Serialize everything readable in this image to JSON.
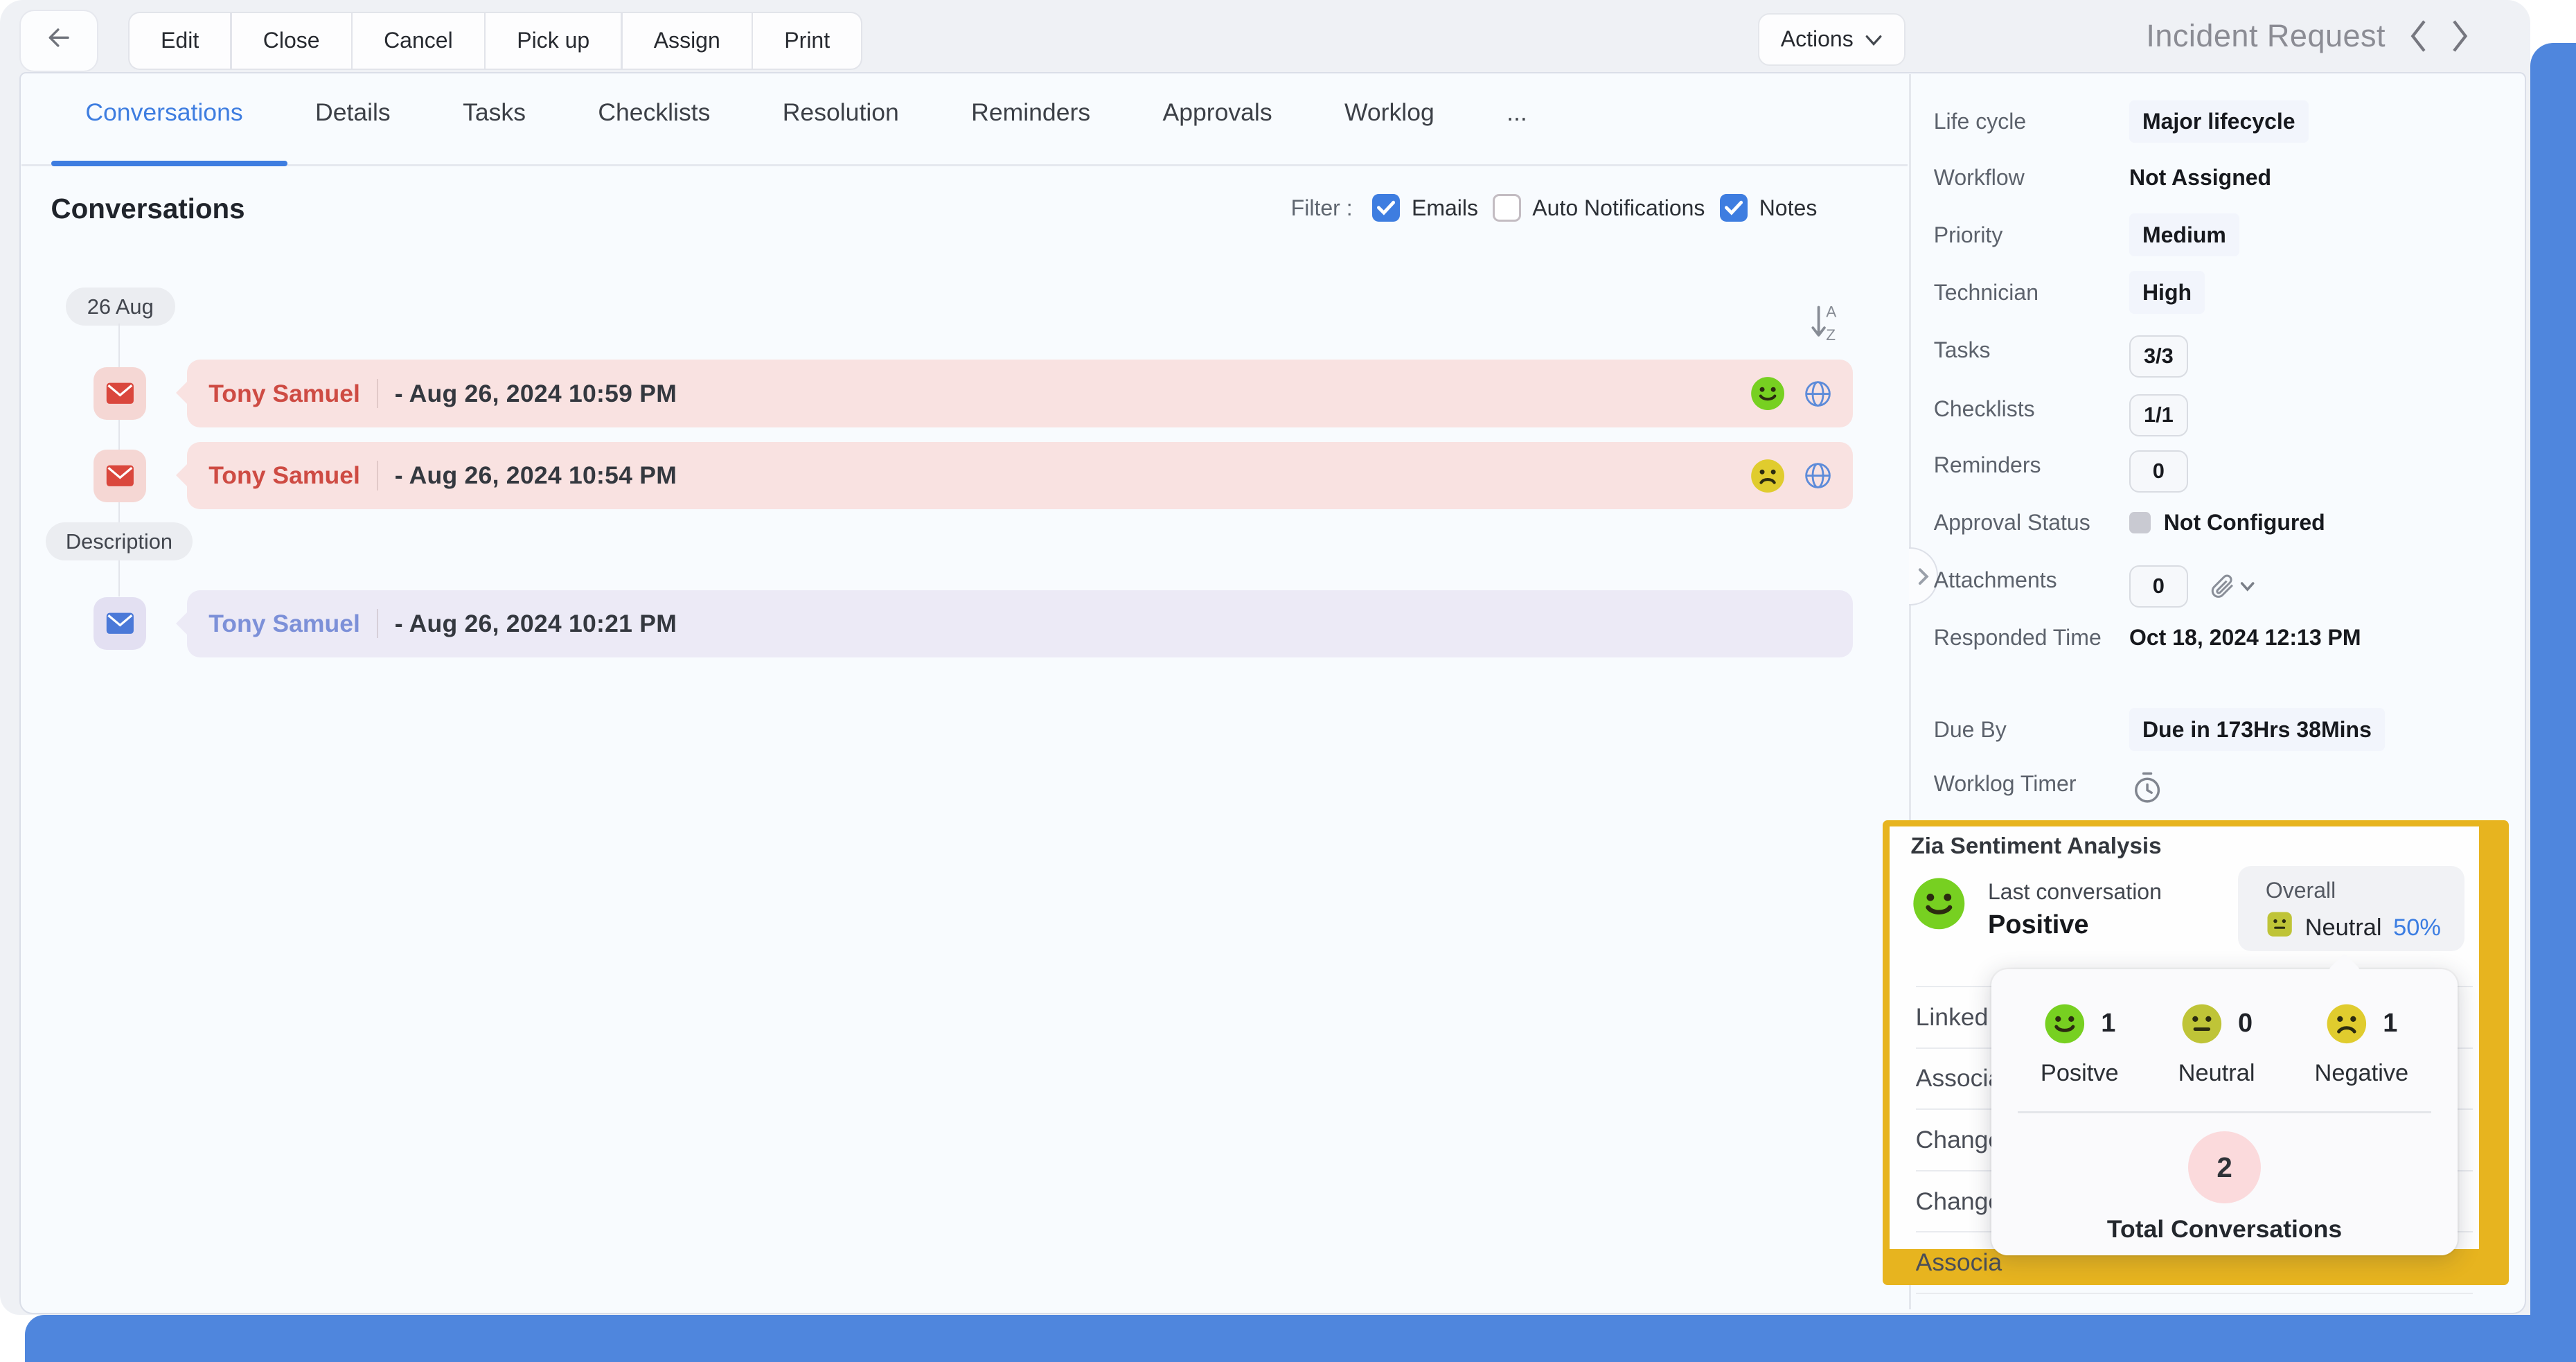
{
  "window": {
    "title": "Incident Request"
  },
  "toolbar": {
    "buttons": [
      "Edit",
      "Close",
      "Cancel",
      "Pick up",
      "Assign",
      "Print"
    ],
    "actions_label": "Actions"
  },
  "tabs": {
    "items": [
      "Conversations",
      "Details",
      "Tasks",
      "Checklists",
      "Resolution",
      "Reminders",
      "Approvals",
      "Worklog",
      "..."
    ],
    "active": "Conversations"
  },
  "conversations": {
    "heading": "Conversations",
    "filter": {
      "label": "Filter :",
      "options": [
        {
          "label": "Emails",
          "checked": true
        },
        {
          "label": "Auto Notifications",
          "checked": false
        },
        {
          "label": "Notes",
          "checked": true
        }
      ]
    },
    "date_chip": "26 Aug",
    "description_chip": "Description",
    "items": [
      {
        "sender": "Tony Samuel",
        "timestamp": "- Aug 26, 2024 10:59 PM",
        "type": "email",
        "theme": "red",
        "sentiment": "positive",
        "has_globe": true
      },
      {
        "sender": "Tony Samuel",
        "timestamp": "- Aug 26, 2024 10:54 PM",
        "type": "email",
        "theme": "red",
        "sentiment": "negative",
        "has_globe": true
      },
      {
        "sender": "Tony Samuel",
        "timestamp": "- Aug 26, 2024 10:21 PM",
        "type": "email",
        "theme": "purple",
        "sentiment": null,
        "has_globe": false
      }
    ]
  },
  "properties": {
    "rows": [
      {
        "label": "Life cycle",
        "value": "Major lifecycle",
        "style": "highlight"
      },
      {
        "label": "Workflow",
        "value": "Not Assigned",
        "style": "plain"
      },
      {
        "label": "Priority",
        "value": "Medium",
        "style": "highlight"
      },
      {
        "label": "Technician",
        "value": "High",
        "style": "highlight"
      },
      {
        "label": "Tasks",
        "value": "3/3",
        "style": "chip"
      },
      {
        "label": "Checklists",
        "value": "1/1",
        "style": "chip"
      },
      {
        "label": "Reminders",
        "value": "0",
        "style": "chip"
      },
      {
        "label": "Approval Status",
        "value": "Not Configured",
        "style": "square"
      },
      {
        "label": "Attachments",
        "value": "0",
        "style": "chip-attach"
      },
      {
        "label": "Responded Time",
        "value": "Oct 18, 2024 12:13 PM",
        "style": "plain"
      },
      {
        "label": "Due By",
        "value": "Due in 173Hrs 38Mins",
        "style": "highlight"
      },
      {
        "label": "Worklog Timer",
        "value": "",
        "style": "timer"
      }
    ],
    "hidden_truncated_rows": [
      "Linked R",
      "Associa",
      "Change",
      "Change",
      "Associa"
    ]
  },
  "zia": {
    "title": "Zia Sentiment Analysis",
    "last_conversation_label": "Last conversation",
    "last_conversation_value": "Positive",
    "last_conversation_sentiment": "positive",
    "overall_label": "Overall",
    "overall_value": "Neutral",
    "overall_percent": "50%",
    "breakdown": [
      {
        "label": "Positve",
        "count": "1",
        "sentiment": "positive"
      },
      {
        "label": "Neutral",
        "count": "0",
        "sentiment": "neutral"
      },
      {
        "label": "Negative",
        "count": "1",
        "sentiment": "negative"
      }
    ],
    "total_count": "2",
    "total_label": "Total Conversations"
  },
  "icons": {
    "back-arrow": "←",
    "actions-caret": "▾",
    "prev-chevron": "‹",
    "next-chevron": "›",
    "sort-az": "↓AZ",
    "mail": "✉",
    "globe": "🌐",
    "paperclip": "📎",
    "attachment-caret": "⌄",
    "worklog-timer": "⏱",
    "collapse-panel": "›",
    "checkbox-check": "✓"
  },
  "colors": {
    "accent_blue": "#3E7DE0",
    "desktop_blue": "#4F86DD",
    "gold_highlight": "#E7B41F",
    "positive": "#77D021",
    "neutral": "#BFC437",
    "negative": "#E0CC2E",
    "overall_emoji": "#D6C52F",
    "row_pink": "#F9E2E1",
    "row_purple": "#ECEAF6",
    "mail_red": "#DA473D",
    "mail_blue": "#4B79D8",
    "link_blue": "#3B7DE2",
    "total_pink": "#FBDADC"
  }
}
